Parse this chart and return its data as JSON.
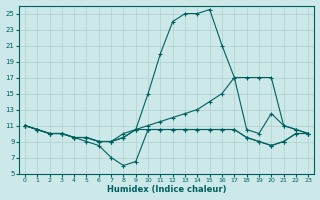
{
  "xlabel": "Humidex (Indice chaleur)",
  "xlim": [
    -0.5,
    23.5
  ],
  "ylim": [
    5,
    26
  ],
  "xticks": [
    0,
    1,
    2,
    3,
    4,
    5,
    6,
    7,
    8,
    9,
    10,
    11,
    12,
    13,
    14,
    15,
    16,
    17,
    18,
    19,
    20,
    21,
    22,
    23
  ],
  "yticks": [
    5,
    7,
    9,
    11,
    13,
    15,
    17,
    19,
    21,
    23,
    25
  ],
  "bg_color": "#cce8e8",
  "line_color": "#006060",
  "grid_color": "#b0d0d0",
  "series": [
    {
      "x": [
        0,
        1,
        2,
        3,
        4,
        5,
        6,
        7,
        8,
        9,
        10,
        11,
        12,
        13,
        14,
        15,
        16,
        17,
        18,
        19,
        20,
        21,
        22,
        23
      ],
      "y": [
        11,
        10.5,
        10,
        10,
        9.5,
        9.5,
        9,
        9,
        10,
        10.5,
        15,
        20,
        24,
        25,
        25,
        25.5,
        21,
        17,
        10.5,
        10,
        12.5,
        11,
        10.5,
        10
      ]
    },
    {
      "x": [
        0,
        1,
        2,
        3,
        4,
        5,
        6,
        7,
        8,
        9,
        10,
        11,
        12,
        13,
        14,
        15,
        16,
        17,
        18,
        19,
        20,
        21,
        22,
        23
      ],
      "y": [
        11,
        10.5,
        10,
        10,
        9.5,
        9.5,
        9,
        9,
        9.5,
        10.5,
        11,
        11.5,
        12,
        12.5,
        13,
        14,
        15,
        17,
        17,
        17,
        17,
        11,
        10.5,
        10
      ]
    },
    {
      "x": [
        0,
        1,
        2,
        3,
        4,
        5,
        6,
        7,
        8,
        9,
        10,
        11,
        12,
        13,
        14,
        15,
        16,
        17,
        18,
        19,
        20,
        21,
        22,
        23
      ],
      "y": [
        11,
        10.5,
        10,
        10,
        9.5,
        9.5,
        9,
        9,
        9.5,
        10.5,
        10.5,
        10.5,
        10.5,
        10.5,
        10.5,
        10.5,
        10.5,
        10.5,
        9.5,
        9,
        8.5,
        9,
        10,
        10
      ]
    },
    {
      "x": [
        0,
        1,
        2,
        3,
        4,
        5,
        6,
        7,
        8,
        9,
        10,
        11,
        12,
        13,
        14,
        15,
        16,
        17,
        18,
        19,
        20,
        21,
        22,
        23
      ],
      "y": [
        11,
        10.5,
        10,
        10,
        9.5,
        9,
        8.5,
        7,
        6,
        6.5,
        10.5,
        10.5,
        10.5,
        10.5,
        10.5,
        10.5,
        10.5,
        10.5,
        9.5,
        9,
        8.5,
        9,
        10,
        10
      ]
    }
  ]
}
